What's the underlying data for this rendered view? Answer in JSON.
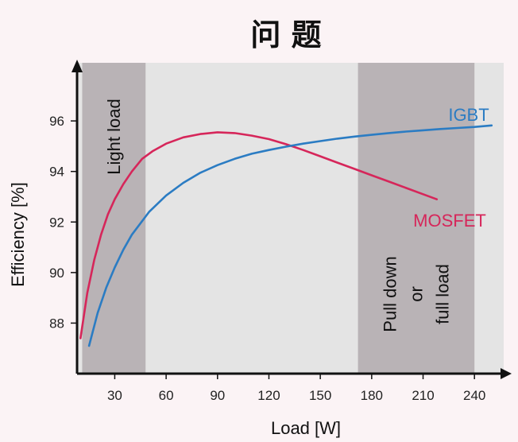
{
  "chart_data": {
    "type": "line",
    "title": "问 题",
    "xlabel": "Load [W]",
    "ylabel": "Efficiency [%]",
    "xlim": [
      8,
      258
    ],
    "ylim": [
      86.0,
      98.3
    ],
    "xticks": [
      30,
      60,
      90,
      120,
      150,
      180,
      210,
      240
    ],
    "yticks": [
      88,
      90,
      92,
      94,
      96
    ],
    "grid": false,
    "bands": [
      {
        "x0": 11,
        "x1": 48,
        "label": [
          "Light load"
        ],
        "color": "#b9b3b6"
      },
      {
        "x0": 172,
        "x1": 240,
        "label": [
          "Pull down",
          "or",
          "full load"
        ],
        "color": "#b9b3b6"
      }
    ],
    "plot_background": "#e4e4e4",
    "series": [
      {
        "name": "MOSFET",
        "color": "#d6265a",
        "x": [
          10,
          14,
          18,
          22,
          26,
          30,
          35,
          40,
          46,
          52,
          60,
          70,
          80,
          90,
          100,
          110,
          120,
          130,
          140,
          150,
          160,
          170,
          180,
          190,
          200,
          210,
          218
        ],
        "y": [
          87.4,
          89.2,
          90.5,
          91.5,
          92.3,
          92.9,
          93.5,
          94.0,
          94.5,
          94.8,
          95.1,
          95.35,
          95.48,
          95.55,
          95.52,
          95.42,
          95.28,
          95.08,
          94.85,
          94.6,
          94.35,
          94.1,
          93.85,
          93.6,
          93.35,
          93.1,
          92.9
        ]
      },
      {
        "name": "IGBT",
        "color": "#2b7cc3",
        "x": [
          15,
          20,
          25,
          30,
          35,
          40,
          50,
          60,
          70,
          80,
          90,
          100,
          110,
          120,
          130,
          140,
          150,
          160,
          170,
          180,
          190,
          200,
          210,
          220,
          230,
          240,
          250
        ],
        "y": [
          87.1,
          88.4,
          89.4,
          90.2,
          90.9,
          91.5,
          92.4,
          93.05,
          93.55,
          93.95,
          94.25,
          94.5,
          94.7,
          94.85,
          94.98,
          95.1,
          95.2,
          95.3,
          95.38,
          95.45,
          95.52,
          95.58,
          95.63,
          95.68,
          95.72,
          95.76,
          95.82
        ]
      }
    ]
  }
}
